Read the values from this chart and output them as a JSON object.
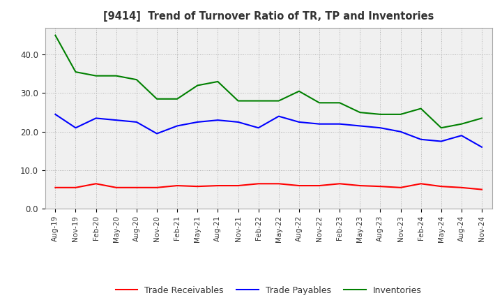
{
  "title": "[9414]  Trend of Turnover Ratio of TR, TP and Inventories",
  "x_labels": [
    "Aug-19",
    "Nov-19",
    "Feb-20",
    "May-20",
    "Aug-20",
    "Nov-20",
    "Feb-21",
    "May-21",
    "Aug-21",
    "Nov-21",
    "Feb-22",
    "May-22",
    "Aug-22",
    "Nov-22",
    "Feb-23",
    "May-23",
    "Aug-23",
    "Nov-23",
    "Feb-24",
    "May-24",
    "Aug-24",
    "Nov-24"
  ],
  "trade_receivables": [
    5.5,
    5.5,
    6.5,
    5.5,
    5.5,
    5.5,
    6.0,
    5.8,
    6.0,
    6.0,
    6.5,
    6.5,
    6.0,
    6.0,
    6.5,
    6.0,
    5.8,
    5.5,
    6.5,
    5.8,
    5.5,
    5.0
  ],
  "trade_payables": [
    24.5,
    21.0,
    23.5,
    23.0,
    22.5,
    19.5,
    21.5,
    22.5,
    23.0,
    22.5,
    21.0,
    24.0,
    22.5,
    22.0,
    22.0,
    21.5,
    21.0,
    20.0,
    18.0,
    17.5,
    19.0,
    16.0
  ],
  "inventories": [
    45.0,
    35.5,
    34.5,
    34.5,
    33.5,
    28.5,
    28.5,
    32.0,
    33.0,
    28.0,
    28.0,
    28.0,
    30.5,
    27.5,
    27.5,
    25.0,
    24.5,
    24.5,
    26.0,
    21.0,
    22.0,
    23.5
  ],
  "tr_color": "#ff0000",
  "tp_color": "#0000ff",
  "inv_color": "#008000",
  "ylim": [
    0,
    47
  ],
  "yticks": [
    0.0,
    10.0,
    20.0,
    30.0,
    40.0
  ],
  "bg_color": "#ffffff",
  "plot_bg_color": "#f0f0f0",
  "grid_color": "#aaaaaa",
  "title_color": "#333333",
  "legend_labels": [
    "Trade Receivables",
    "Trade Payables",
    "Inventories"
  ]
}
